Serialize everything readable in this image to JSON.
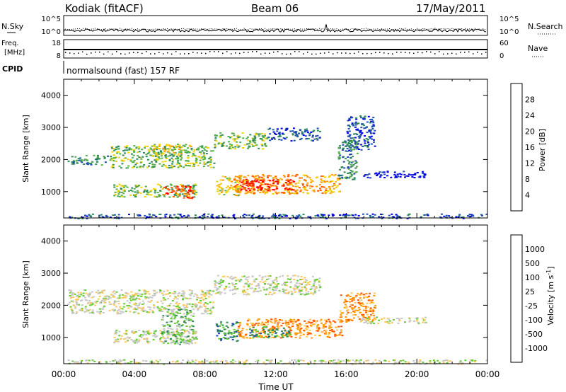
{
  "header": {
    "station": "Kodiak (fitACF)",
    "beam": "Beam 06",
    "date": "17/May/2011"
  },
  "top_panels": {
    "nsky_label": "N.Sky",
    "nsearch_label": "N.Search",
    "noise_tick_top": "10^5",
    "noise_tick_bottom": "10^0",
    "freq_label_1": "Freq.",
    "freq_label_2": "[MHz]",
    "freq_ticks": [
      "18",
      "8"
    ],
    "nave_label": "Nave",
    "nave_ticks": [
      "60",
      "0"
    ],
    "cpid_label": "CPID",
    "cpid_text": "normalsound (fast) 157 RF"
  },
  "colors": {
    "power_scale": [
      "#0000e6",
      "#1f4fb0",
      "#2e8b57",
      "#55b04a",
      "#f3d000",
      "#ff9a00",
      "#ff5a00",
      "#ff0000"
    ],
    "velocity_scale": [
      "#e60000",
      "#ff5500",
      "#ff9900",
      "#ffc85a",
      "#c8c8c8",
      "#66cc33",
      "#2e8b57",
      "#1f4fb0",
      "#0000cc"
    ],
    "velocity_ground": "#c0c0c0"
  },
  "chart_data": [
    {
      "type": "heatmap",
      "name_hint": "power panel",
      "xlabel": "Time UT",
      "ylabel": "Slant Range [km]",
      "xlim": [
        0,
        24
      ],
      "ylim": [
        180,
        4500
      ],
      "x_ticks": [
        "00:00",
        "04:00",
        "08:00",
        "12:00",
        "16:00",
        "20:00",
        "00:00"
      ],
      "y_ticks": [
        1000,
        2000,
        3000,
        4000
      ],
      "colorbar_label": "Power [dB]",
      "colorbar_ticks": [
        "4",
        "8",
        "12",
        "16",
        "20",
        "24",
        "28"
      ],
      "regions": [
        {
          "t0": 0.2,
          "t1": 2.6,
          "r0": 1850,
          "r1": 2150,
          "level": 2
        },
        {
          "t0": 2.6,
          "t1": 8.5,
          "r0": 1750,
          "r1": 2450,
          "level": 3
        },
        {
          "t0": 5.0,
          "t1": 7.2,
          "r0": 2200,
          "r1": 2500,
          "level": 4
        },
        {
          "t0": 8.5,
          "t1": 11.5,
          "r0": 2350,
          "r1": 2850,
          "level": 3
        },
        {
          "t0": 11.5,
          "t1": 14.5,
          "r0": 2600,
          "r1": 3000,
          "level": 1
        },
        {
          "t0": 2.8,
          "t1": 7.5,
          "r0": 850,
          "r1": 1250,
          "level": 3
        },
        {
          "t0": 5.5,
          "t1": 7.3,
          "r0": 800,
          "r1": 1200,
          "level": 6
        },
        {
          "t0": 8.6,
          "t1": 10.0,
          "r0": 900,
          "r1": 1500,
          "level": 4
        },
        {
          "t0": 9.6,
          "t1": 15.6,
          "r0": 950,
          "r1": 1550,
          "level": 5
        },
        {
          "t0": 10.0,
          "t1": 13.0,
          "r0": 1050,
          "r1": 1400,
          "level": 7
        },
        {
          "t0": 15.5,
          "t1": 16.6,
          "r0": 1400,
          "r1": 2600,
          "level": 2
        },
        {
          "t0": 16.0,
          "t1": 17.6,
          "r0": 2300,
          "r1": 3400,
          "level": 1
        },
        {
          "t0": 16.8,
          "t1": 20.5,
          "r0": 1450,
          "r1": 1650,
          "level": 0
        },
        {
          "t0": 0.2,
          "t1": 24.0,
          "r0": 180,
          "r1": 320,
          "level": 1
        }
      ]
    },
    {
      "type": "heatmap",
      "name_hint": "velocity panel",
      "xlabel": "Time UT",
      "ylabel": "Slant Range [km]",
      "xlim": [
        0,
        24
      ],
      "ylim": [
        180,
        4500
      ],
      "x_ticks": [
        "00:00",
        "04:00",
        "08:00",
        "12:00",
        "16:00",
        "20:00",
        "00:00"
      ],
      "y_ticks": [
        1000,
        2000,
        3000,
        4000
      ],
      "colorbar_label": "Velocity [m s",
      "colorbar_label_sup": "-1",
      "colorbar_label_end": "]",
      "colorbar_ticks": [
        "1000",
        "500",
        "100",
        "25",
        "-25",
        "-100",
        "-500",
        "-1000"
      ],
      "regions": [
        {
          "t0": 0.2,
          "t1": 8.5,
          "r0": 1750,
          "r1": 2500,
          "level": 4
        },
        {
          "t0": 8.5,
          "t1": 14.5,
          "r0": 2350,
          "r1": 2950,
          "level": 4
        },
        {
          "t0": 2.8,
          "t1": 7.5,
          "r0": 850,
          "r1": 1250,
          "level": 4
        },
        {
          "t0": 5.5,
          "t1": 7.3,
          "r0": 800,
          "r1": 1900,
          "level": 5
        },
        {
          "t0": 8.6,
          "t1": 10.0,
          "r0": 900,
          "r1": 1500,
          "level": 6
        },
        {
          "t0": 9.8,
          "t1": 15.8,
          "r0": 1000,
          "r1": 1600,
          "level": 2
        },
        {
          "t0": 10.5,
          "t1": 12.8,
          "r0": 1000,
          "r1": 1350,
          "level": 6
        },
        {
          "t0": 15.6,
          "t1": 17.6,
          "r0": 1500,
          "r1": 2400,
          "level": 2
        },
        {
          "t0": 16.8,
          "t1": 20.5,
          "r0": 1450,
          "r1": 1650,
          "level": 4
        },
        {
          "t0": 0.2,
          "t1": 24.0,
          "r0": 180,
          "r1": 320,
          "level": 4
        }
      ]
    }
  ]
}
